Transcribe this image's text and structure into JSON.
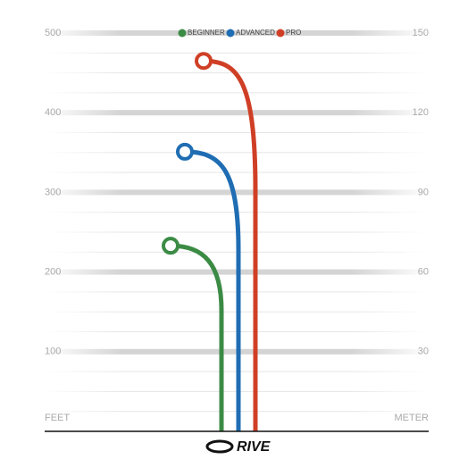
{
  "chart_data": {
    "type": "flight",
    "series": [
      {
        "name": "BEGINNER",
        "color": "#3b8b45",
        "values": [
          233
        ]
      },
      {
        "name": "ADVANCED",
        "color": "#1f6db3",
        "values": [
          351
        ]
      },
      {
        "name": "PRO",
        "color": "#cf3f26",
        "values": [
          465
        ]
      }
    ],
    "ylim": [
      0,
      500
    ],
    "yticks": [
      100,
      200,
      300,
      400,
      500
    ],
    "minor_yticks": [
      25,
      50,
      75,
      125,
      150,
      175,
      225,
      250,
      275,
      325,
      350,
      375,
      425,
      450,
      475
    ],
    "y2lim": [
      0,
      150
    ],
    "y2ticks": [
      30,
      60,
      90,
      120,
      150
    ],
    "ylabel": "FEET",
    "y2label": "METER",
    "brand": "RIVE",
    "grid": true
  }
}
